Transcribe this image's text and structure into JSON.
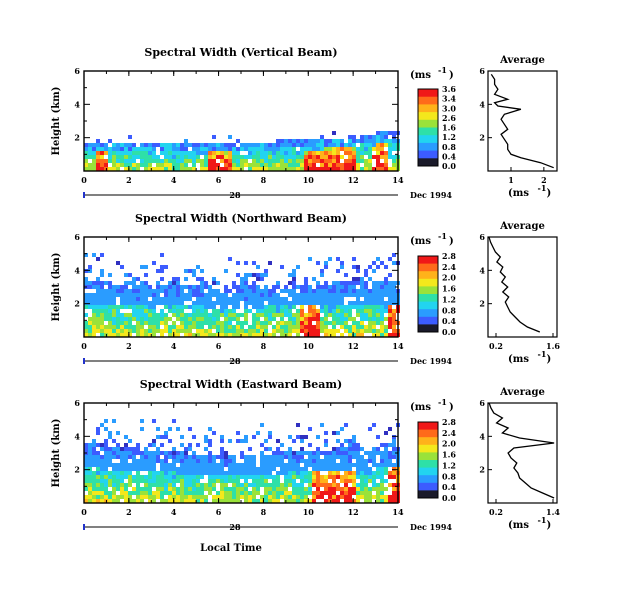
{
  "figure": {
    "local_time_label": "Local Time",
    "date_day": "28",
    "date_month_year": "Dec 1994",
    "height_label": "Height (km)",
    "unit_label": "(ms",
    "unit_exp": "-1",
    "avg_title": "Average"
  },
  "chart_data": [
    {
      "type": "heatmap",
      "title": "Spectral Width (Vertical Beam)",
      "xlabel": "",
      "ylabel": "Height (km)",
      "xlim": [
        0,
        14
      ],
      "ylim": [
        0,
        6
      ],
      "xticks": [
        "0",
        "2",
        "4",
        "6",
        "8",
        "10",
        "12",
        "14"
      ],
      "yticks": [
        "2",
        "4",
        "6"
      ],
      "colorbar": {
        "ticks": [
          "3.6",
          "3.4",
          "3.0",
          "2.6",
          "1.6",
          "1.2",
          "0.8",
          "0.4",
          "0.0"
        ],
        "range": [
          0,
          3.6
        ]
      },
      "echo_top_km": [
        [
          0,
          1.9
        ],
        [
          2,
          1.9
        ],
        [
          4,
          1.8
        ],
        [
          6,
          1.8
        ],
        [
          8,
          1.9
        ],
        [
          10,
          2.0
        ],
        [
          12,
          2.2
        ],
        [
          14,
          2.6
        ]
      ],
      "intense_regions": [
        [
          0.5,
          1.0
        ],
        [
          5.5,
          6.5
        ],
        [
          9.8,
          12.0
        ],
        [
          12.8,
          13.5
        ]
      ],
      "average_profile": {
        "title": "Average",
        "xlabel": "(ms-1)",
        "xticks": [
          "1",
          "2"
        ],
        "yticks": [
          "2",
          "4",
          "6"
        ],
        "xlim": [
          0.3,
          2.4
        ],
        "height_km": [
          0.2,
          0.5,
          0.8,
          1.0,
          1.3,
          1.6,
          1.9,
          2.2,
          2.5,
          2.8,
          3.1,
          3.4,
          3.7,
          3.9,
          4.1,
          4.3,
          4.6,
          4.9,
          5.2,
          5.5,
          5.8
        ],
        "value_ms": [
          2.3,
          1.9,
          1.3,
          1.0,
          0.9,
          0.9,
          0.8,
          0.7,
          0.9,
          0.8,
          0.7,
          0.8,
          1.3,
          0.6,
          0.5,
          0.9,
          0.5,
          0.6,
          0.5,
          0.5,
          0.4
        ]
      }
    },
    {
      "type": "heatmap",
      "title": "Spectral Width (Northward Beam)",
      "xlabel": "",
      "ylabel": "Height (km)",
      "xlim": [
        0,
        14
      ],
      "ylim": [
        0,
        6
      ],
      "xticks": [
        "0",
        "2",
        "4",
        "6",
        "8",
        "10",
        "12",
        "14"
      ],
      "yticks": [
        "2",
        "4",
        "6"
      ],
      "colorbar": {
        "ticks": [
          "2.8",
          "2.4",
          "2.0",
          "1.6",
          "1.2",
          "0.8",
          "0.4",
          "0.0"
        ],
        "range": [
          0,
          2.8
        ]
      },
      "echo_top_km": [
        [
          0,
          3.6
        ],
        [
          2,
          3.2
        ],
        [
          4,
          3.4
        ],
        [
          6,
          3.1
        ],
        [
          8,
          3.2
        ],
        [
          10,
          3.3
        ],
        [
          12,
          3.4
        ],
        [
          14,
          3.6
        ]
      ],
      "intense_regions": [
        [
          9.5,
          10.5
        ],
        [
          13.5,
          14.0
        ]
      ],
      "average_profile": {
        "title": "Average",
        "xlabel": "(ms-1)",
        "xticks": [
          "0.2",
          "1.6"
        ],
        "yticks": [
          "2",
          "4",
          "6"
        ],
        "xlim": [
          0.2,
          1.6
        ],
        "height_km": [
          0.3,
          0.6,
          0.9,
          1.2,
          1.5,
          1.8,
          2.1,
          2.4,
          2.7,
          3.0,
          3.3,
          3.6,
          3.9,
          4.2,
          4.5,
          4.8,
          5.1,
          5.4,
          5.7,
          6.0
        ],
        "value_ms": [
          1.25,
          1.0,
          0.85,
          0.75,
          0.65,
          0.6,
          0.55,
          0.62,
          0.5,
          0.6,
          0.48,
          0.55,
          0.45,
          0.5,
          0.38,
          0.45,
          0.35,
          0.3,
          0.25,
          0.22
        ]
      }
    },
    {
      "type": "heatmap",
      "title": "Spectral Width (Eastward Beam)",
      "xlabel": "Local Time",
      "ylabel": "Height (km)",
      "xlim": [
        0,
        14
      ],
      "ylim": [
        0,
        6
      ],
      "xticks": [
        "0",
        "2",
        "4",
        "6",
        "8",
        "10",
        "12",
        "14"
      ],
      "yticks": [
        "2",
        "4",
        "6"
      ],
      "colorbar": {
        "ticks": [
          "2.8",
          "2.4",
          "2.0",
          "1.6",
          "1.2",
          "0.8",
          "0.4",
          "0.0"
        ],
        "range": [
          0,
          2.8
        ]
      },
      "echo_top_km": [
        [
          0,
          3.7
        ],
        [
          2,
          3.4
        ],
        [
          4,
          3.2
        ],
        [
          6,
          3.0
        ],
        [
          8,
          3.1
        ],
        [
          10,
          3.3
        ],
        [
          12,
          3.4
        ],
        [
          14,
          3.8
        ]
      ],
      "intense_regions": [
        [
          10.0,
          12.0
        ],
        [
          13.5,
          14.0
        ]
      ],
      "average_profile": {
        "title": "Average",
        "xlabel": "(ms-1)",
        "xticks": [
          "0.2",
          "1.4"
        ],
        "yticks": [
          "2",
          "4",
          "6"
        ],
        "xlim": [
          0.2,
          1.4
        ],
        "height_km": [
          0.3,
          0.6,
          0.9,
          1.2,
          1.5,
          1.8,
          2.1,
          2.4,
          2.7,
          3.0,
          3.3,
          3.6,
          3.9,
          4.2,
          4.5,
          4.8,
          5.1,
          5.4,
          5.7,
          6.0
        ],
        "value_ms": [
          1.35,
          1.15,
          0.95,
          0.85,
          0.75,
          0.72,
          0.65,
          0.7,
          0.6,
          0.55,
          0.65,
          1.35,
          0.75,
          0.45,
          0.55,
          0.35,
          0.45,
          0.3,
          0.25,
          0.22
        ]
      }
    }
  ]
}
